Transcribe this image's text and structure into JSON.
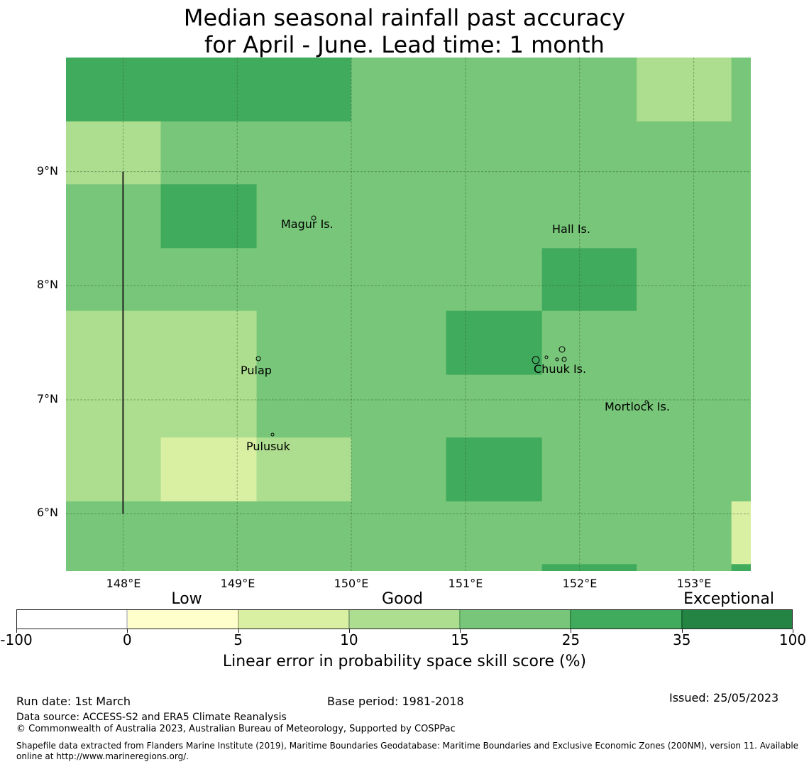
{
  "title": {
    "line1": "Median seasonal rainfall past accuracy",
    "line2": "for April - June. Lead time: 1 month"
  },
  "map": {
    "lon_range": [
      147.5,
      153.5
    ],
    "lat_range": [
      5.5,
      10.0
    ],
    "x_ticks": [
      "148°E",
      "149°E",
      "150°E",
      "151°E",
      "152°E",
      "153°E"
    ],
    "x_tick_values": [
      148,
      149,
      150,
      151,
      152,
      153
    ],
    "y_ticks": [
      "9°N",
      "8°N",
      "7°N",
      "6°N"
    ],
    "y_tick_values": [
      9,
      8,
      7,
      6
    ],
    "background_category": 4,
    "cells": [
      {
        "lon": [
          147.5,
          150.0
        ],
        "lat": [
          9.44,
          10.0
        ],
        "category": 5
      },
      {
        "lon": [
          150.0,
          152.5
        ],
        "lat": [
          9.44,
          10.0
        ],
        "category": 4
      },
      {
        "lon": [
          152.5,
          153.33
        ],
        "lat": [
          9.44,
          10.0
        ],
        "category": 3
      },
      {
        "lon": [
          147.5,
          148.33
        ],
        "lat": [
          8.89,
          9.44
        ],
        "category": 3
      },
      {
        "lon": [
          148.33,
          149.17
        ],
        "lat": [
          8.33,
          8.89
        ],
        "category": 5
      },
      {
        "lon": [
          151.67,
          152.5
        ],
        "lat": [
          7.78,
          8.33
        ],
        "category": 5
      },
      {
        "lon": [
          147.5,
          149.17
        ],
        "lat": [
          6.11,
          7.78
        ],
        "category": 3
      },
      {
        "lon": [
          150.83,
          151.67
        ],
        "lat": [
          7.22,
          7.78
        ],
        "category": 5
      },
      {
        "lon": [
          148.33,
          149.17
        ],
        "lat": [
          6.11,
          6.67
        ],
        "category": 2
      },
      {
        "lon": [
          149.17,
          150.0
        ],
        "lat": [
          6.11,
          6.67
        ],
        "category": 3
      },
      {
        "lon": [
          150.83,
          151.67
        ],
        "lat": [
          6.11,
          6.67
        ],
        "category": 5
      },
      {
        "lon": [
          153.33,
          153.5
        ],
        "lat": [
          5.56,
          6.11
        ],
        "category": 2
      },
      {
        "lon": [
          153.33,
          153.5
        ],
        "lat": [
          5.5,
          5.56
        ],
        "category": 5
      },
      {
        "lon": [
          151.67,
          152.5
        ],
        "lat": [
          5.5,
          5.56
        ],
        "category": 5
      }
    ],
    "boundary_line": {
      "lon": 148.0,
      "lat": [
        6.0,
        9.0
      ]
    },
    "places": [
      {
        "name": "Magur Is.",
        "lon": 149.67,
        "lat": 8.53
      },
      {
        "name": "Hall Is.",
        "lon": 151.97,
        "lat": 8.49
      },
      {
        "name": "Pulap",
        "lon": 149.2,
        "lat": 7.25
      },
      {
        "name": "Chuuk Is.",
        "lon": 151.9,
        "lat": 7.26
      },
      {
        "name": "Mortlock Is.",
        "lon": 152.6,
        "lat": 6.93
      },
      {
        "name": "Pulusuk",
        "lon": 149.33,
        "lat": 6.58
      }
    ]
  },
  "colorbar": {
    "categories": [
      "Low",
      "Good",
      "Exceptional"
    ],
    "bounds": [
      "-100",
      "0",
      "5",
      "10",
      "15",
      "25",
      "35",
      "100"
    ],
    "colors": [
      "#ffffff",
      "#ffffcc",
      "#d9f0a3",
      "#addd8e",
      "#78c679",
      "#41ab5d",
      "#238443"
    ],
    "label": "Linear error in probability space skill score (%)"
  },
  "footer": {
    "run_date": "Run date: 1st March",
    "base_period": "Base period: 1981-2018",
    "issued": "Issued: 25/05/2023",
    "data_source": "Data source: ACCESS-S2 and ERA5 Climate Reanalysis",
    "copyright": "© Commonwealth of Australia 2023, Australian Bureau of Meteorology, Supported by COSPPac",
    "shapefile_line1": "Shapefile data extracted from Flanders Marine Institute (2019), Maritime Boundaries Geodatabase: Maritime Boundaries and Exclusive Economic Zones (200NM), version 11. Available",
    "shapefile_line2": "online at http://www.marineregions.org/."
  }
}
